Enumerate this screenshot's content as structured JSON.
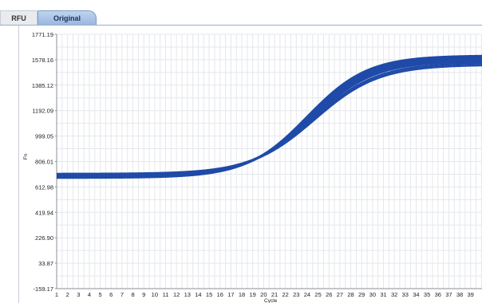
{
  "tabs": [
    {
      "label": "RFU"
    },
    {
      "label": "Original"
    }
  ],
  "chart_data": {
    "type": "line",
    "xlabel": "Cycle",
    "ylabel": "Fn",
    "ylim": [
      -159.17,
      1771.19
    ],
    "xlim": [
      1,
      39
    ],
    "yticks": [
      "1771.19",
      "1578.16",
      "1385.12",
      "1192.09",
      "999.05",
      "806.01",
      "612.98",
      "419.94",
      "226.90",
      "33.87",
      "-159.17"
    ],
    "xticks": [
      "1",
      "2",
      "3",
      "4",
      "5",
      "6",
      "7",
      "8",
      "9",
      "10",
      "11",
      "12",
      "13",
      "14",
      "15",
      "16",
      "17",
      "18",
      "19",
      "20",
      "21",
      "22",
      "23",
      "24",
      "25",
      "26",
      "27",
      "28",
      "29",
      "30",
      "31",
      "32",
      "33",
      "34",
      "35",
      "36",
      "37",
      "38",
      "39"
    ],
    "grid": true,
    "line_color": "#1f4aa8",
    "series": [
      {
        "baseline": 682,
        "plateau": 1610,
        "midpoint": 24.0,
        "slope": 0.36
      },
      {
        "baseline": 688,
        "plateau": 1602,
        "midpoint": 24.1,
        "slope": 0.36
      },
      {
        "baseline": 692,
        "plateau": 1595,
        "midpoint": 24.2,
        "slope": 0.36
      },
      {
        "baseline": 697,
        "plateau": 1588,
        "midpoint": 24.3,
        "slope": 0.35
      },
      {
        "baseline": 701,
        "plateau": 1578,
        "midpoint": 24.4,
        "slope": 0.35
      },
      {
        "baseline": 705,
        "plateau": 1568,
        "midpoint": 24.5,
        "slope": 0.35
      },
      {
        "baseline": 709,
        "plateau": 1555,
        "midpoint": 24.6,
        "slope": 0.34
      },
      {
        "baseline": 712,
        "plateau": 1540,
        "midpoint": 24.7,
        "slope": 0.34
      }
    ]
  }
}
